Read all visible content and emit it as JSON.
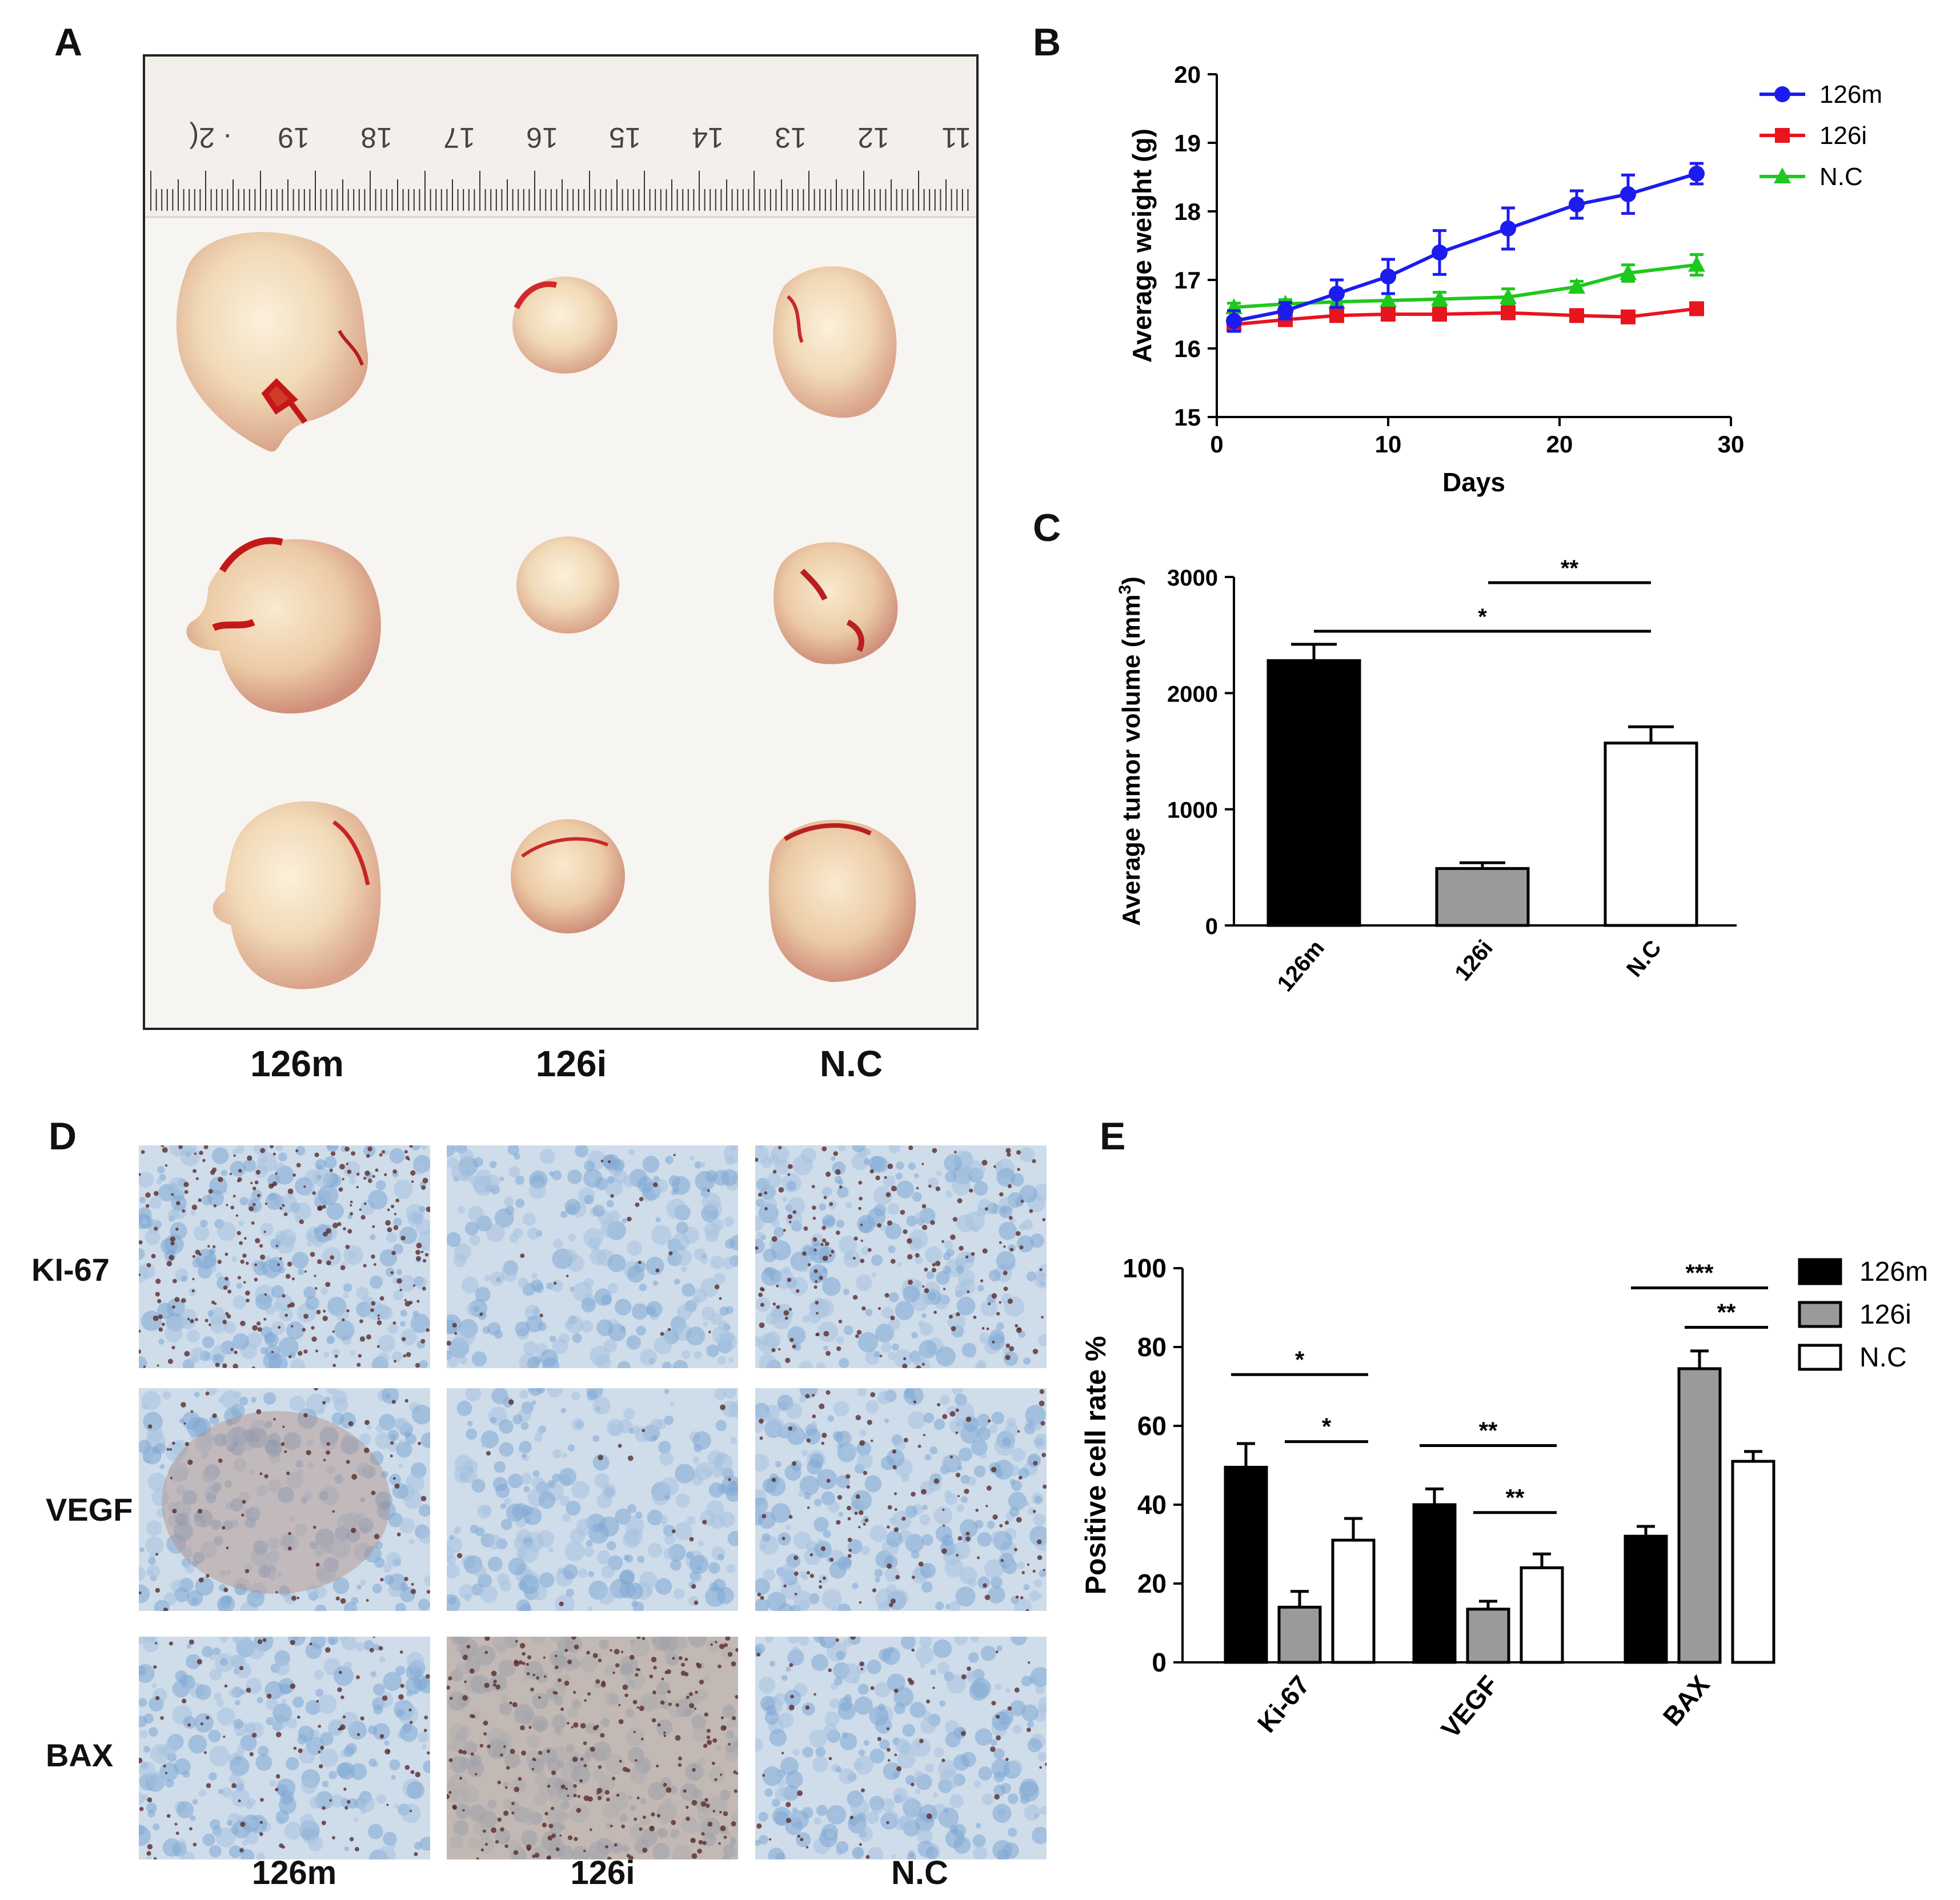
{
  "panels": {
    "a": "A",
    "b": "B",
    "c": "C",
    "d": "D",
    "e": "E"
  },
  "ruler": {
    "numbers": [
      "11",
      "12",
      "13",
      "14",
      "15",
      "16",
      "17",
      "18",
      "19",
      "· 2("
    ]
  },
  "panel_a": {
    "captions": [
      "126m",
      "126i",
      "N.C"
    ]
  },
  "panel_d": {
    "rows": [
      "KI-67",
      "VEGF",
      "BAX"
    ],
    "columns": [
      "126m",
      "126i",
      "N.C"
    ]
  },
  "colors": {
    "blue": "#1c1cf0",
    "red": "#e8141e",
    "green": "#1ec81e",
    "gray": "#9a9a9a",
    "black": "#000000"
  },
  "chart_data": [
    {
      "id": "B",
      "type": "line",
      "xlabel": "Days",
      "ylabel": "Average weight (g)",
      "xlim": [
        0,
        30
      ],
      "ylim": [
        15,
        20
      ],
      "xticks": [
        0,
        10,
        20,
        30
      ],
      "yticks": [
        15,
        16,
        17,
        18,
        19,
        20
      ],
      "legend_position": "top-right",
      "series": [
        {
          "name": "126m",
          "marker": "circle",
          "color": "#1c1cf0",
          "x": [
            1,
            4,
            7,
            10,
            13,
            17,
            21,
            24,
            28
          ],
          "y": [
            16.4,
            16.55,
            16.8,
            17.05,
            17.4,
            17.75,
            18.1,
            18.25,
            18.55
          ],
          "err": [
            0.15,
            0.12,
            0.2,
            0.25,
            0.32,
            0.3,
            0.2,
            0.28,
            0.15
          ]
        },
        {
          "name": "126i",
          "marker": "square",
          "color": "#e8141e",
          "x": [
            1,
            4,
            7,
            10,
            13,
            17,
            21,
            24,
            28
          ],
          "y": [
            16.35,
            16.42,
            16.48,
            16.5,
            16.5,
            16.52,
            16.48,
            16.46,
            16.58
          ],
          "err": [
            0.05,
            0.04,
            0.04,
            0.04,
            0.04,
            0.04,
            0.04,
            0.04,
            0.04
          ]
        },
        {
          "name": "N.C",
          "marker": "triangle",
          "color": "#1ec81e",
          "x": [
            1,
            4,
            7,
            10,
            13,
            17,
            21,
            24,
            28
          ],
          "y": [
            16.6,
            16.65,
            16.68,
            16.7,
            16.72,
            16.75,
            16.9,
            17.1,
            17.22
          ],
          "err": [
            0.06,
            0.06,
            0.08,
            0.1,
            0.1,
            0.12,
            0.08,
            0.12,
            0.15
          ]
        }
      ]
    },
    {
      "id": "C",
      "type": "bar",
      "categories": [
        "126m",
        "126i",
        "N.C"
      ],
      "values": [
        2280,
        490,
        1570
      ],
      "errors": [
        140,
        50,
        140
      ],
      "fills": [
        "#000000",
        "#9a9a9a",
        "#ffffff"
      ],
      "ylabel": "Average tumor volume (mm",
      "ylabel_sup": "3",
      "ylabel_end": ")",
      "ylim": [
        0,
        3000
      ],
      "yticks": [
        0,
        1000,
        2000,
        3000
      ],
      "significance": [
        {
          "from": 1,
          "to": 2,
          "label": "**"
        },
        {
          "from": 0,
          "to": 2,
          "label": "*"
        }
      ]
    },
    {
      "id": "E",
      "type": "bar",
      "categories": [
        "Ki-67",
        "VEGF",
        "BAX"
      ],
      "series": [
        {
          "name": "126m",
          "fill": "#000000",
          "values": [
            49.5,
            40,
            32
          ],
          "errors": [
            6,
            4,
            2.5
          ]
        },
        {
          "name": "126i",
          "fill": "#9a9a9a",
          "values": [
            14,
            13.5,
            74.5
          ],
          "errors": [
            4,
            2,
            4.5
          ]
        },
        {
          "name": "N.C",
          "fill": "#ffffff",
          "values": [
            31,
            24,
            51
          ],
          "errors": [
            5.5,
            3.5,
            2.5
          ]
        }
      ],
      "ylabel": "Positive cell rate %",
      "ylim": [
        0,
        100
      ],
      "yticks": [
        0,
        20,
        40,
        60,
        80,
        100
      ],
      "legend_position": "top-right",
      "significance": [
        {
          "group": 0,
          "from": 0,
          "to": 2,
          "label": "*"
        },
        {
          "group": 0,
          "from": 1,
          "to": 2,
          "label": "*"
        },
        {
          "group": 1,
          "from": 0,
          "to": 2,
          "label": "**"
        },
        {
          "group": 1,
          "from": 1,
          "to": 2,
          "label": "**"
        },
        {
          "group": 2,
          "from": 0,
          "to": 2,
          "label": "***"
        },
        {
          "group": 2,
          "from": 1,
          "to": 2,
          "label": "**"
        }
      ]
    }
  ]
}
